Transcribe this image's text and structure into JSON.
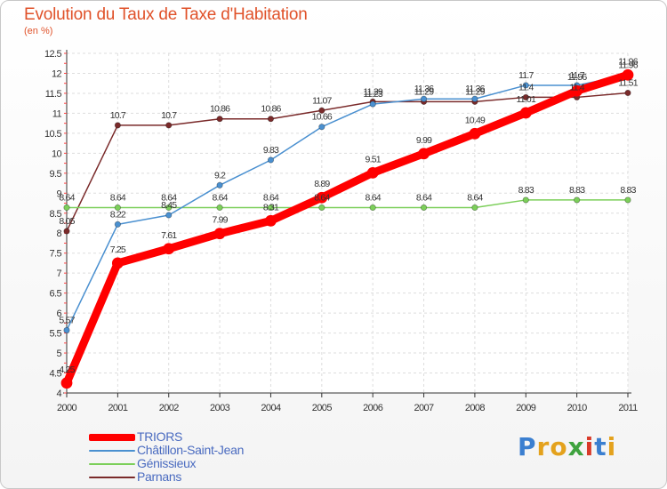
{
  "title": "Evolution du Taux de Taxe d'Habitation",
  "subtitle": "(en %)",
  "logo": {
    "letters": [
      {
        "ch": "P",
        "color": "#3b7fd0"
      },
      {
        "ch": "r",
        "color": "#e4a21d"
      },
      {
        "ch": "o",
        "color": "#e4a21d"
      },
      {
        "ch": "x",
        "color": "#3fa33f"
      },
      {
        "ch": "i",
        "color": "#d93a2a"
      },
      {
        "ch": "t",
        "color": "#3b7fd0"
      },
      {
        "ch": "i",
        "color": "#e4a21d"
      }
    ]
  },
  "chart_data": {
    "type": "line",
    "title": "Evolution du Taux de Taxe d'Habitation",
    "subtitle": "(en %)",
    "x": [
      "2000",
      "2001",
      "2002",
      "2003",
      "2004",
      "2005",
      "2006",
      "2007",
      "2008",
      "2009",
      "2010",
      "2011"
    ],
    "ylim": [
      4,
      12.5
    ],
    "yticks": [
      4,
      4.5,
      5,
      5.5,
      6,
      6.5,
      7,
      7.5,
      8,
      8.5,
      9,
      9.5,
      10,
      10.5,
      11,
      11.5,
      12,
      12.5
    ],
    "grid": true,
    "legend_position": "bottom-left",
    "series": [
      {
        "name": "TRIORS",
        "color": "#ff0000",
        "values": [
          4.25,
          7.25,
          7.61,
          7.99,
          8.31,
          8.89,
          9.51,
          9.99,
          10.49,
          11.01,
          11.56,
          11.96
        ],
        "labels": [
          "4.25",
          "7.25",
          "7.61",
          "7.99",
          "8.31",
          "8.89",
          "9.51",
          "9.99",
          "10.49",
          "11.01",
          "11.56",
          "11.96"
        ]
      },
      {
        "name": "Châtillon-Saint-Jean",
        "color": "#4a90d0",
        "values": [
          5.57,
          8.22,
          8.45,
          9.2,
          9.83,
          10.66,
          11.23,
          11.36,
          11.36,
          11.7,
          11.7,
          11.96
        ],
        "labels": [
          "5.57",
          "8.22",
          "8.45",
          "9.2",
          "9.83",
          "10.66",
          "11.23",
          "11.36",
          "11.36",
          "11.7",
          "11.7",
          "11.96"
        ]
      },
      {
        "name": "Génissieux",
        "color": "#7ccf5a",
        "values": [
          8.64,
          8.64,
          8.64,
          8.64,
          8.64,
          8.64,
          8.64,
          8.64,
          8.64,
          8.83,
          8.83,
          8.83
        ],
        "labels": [
          "8.64",
          "8.64",
          "8.64",
          "8.64",
          "8.64",
          "8.64",
          "8.64",
          "8.64",
          "8.64",
          "8.83",
          "8.83",
          "8.83"
        ]
      },
      {
        "name": "Parnans",
        "color": "#7a2a2a",
        "values": [
          8.05,
          10.7,
          10.7,
          10.86,
          10.86,
          11.07,
          11.29,
          11.29,
          11.29,
          11.4,
          11.4,
          11.51
        ],
        "labels": [
          "8.05",
          "10.7",
          "10.7",
          "10.86",
          "10.86",
          "11.07",
          "11.29",
          "11.29",
          "11.29",
          "11.4",
          "11.4",
          "11.51"
        ]
      }
    ]
  }
}
